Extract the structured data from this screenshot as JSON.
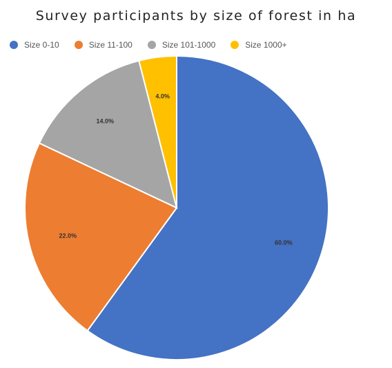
{
  "chart_data": {
    "type": "pie",
    "title": "Survey participants  by size of forest in ha",
    "legend_position": "top-left",
    "categories": [
      "Size 0-10",
      "Size 11-100",
      "Size 101-1000",
      "Size 1000+"
    ],
    "values": [
      60.0,
      22.0,
      14.0,
      4.0
    ],
    "labels": [
      "60.0%",
      "22.0%",
      "14.0%",
      "4.0%"
    ],
    "colors": [
      "#4472C4",
      "#ED7D31",
      "#A5A5A5",
      "#FFC000"
    ]
  }
}
